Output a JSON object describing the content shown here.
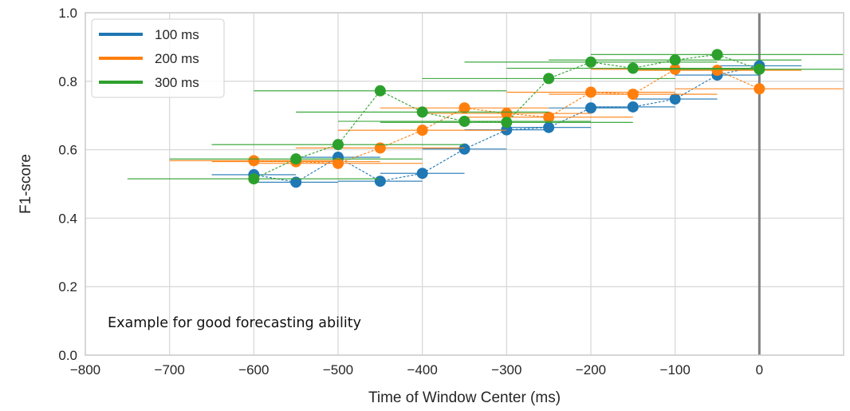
{
  "chart_data": {
    "type": "scatter",
    "title": "",
    "xlabel": "Time of Window Center (ms)",
    "ylabel": "F1-score",
    "xlim": [
      -800,
      100
    ],
    "ylim": [
      0.0,
      1.0
    ],
    "xticks": [
      -800,
      -700,
      -600,
      -500,
      -400,
      -300,
      -200,
      -100,
      0
    ],
    "xtick_labels": [
      "−800",
      "−700",
      "−600",
      "−500",
      "−400",
      "−300",
      "−200",
      "−100",
      "0"
    ],
    "yticks": [
      0.0,
      0.2,
      0.4,
      0.6,
      0.8,
      1.0
    ],
    "ytick_labels": [
      "0.0",
      "0.2",
      "0.4",
      "0.6",
      "0.8",
      "1.0"
    ],
    "grid": true,
    "legend_position": "top-left",
    "reference_line_x": 0,
    "annotation": "Example for good forecasting ability",
    "series": [
      {
        "name": "100 ms",
        "color": "#1f77b4",
        "x": [
          -600,
          -550,
          -500,
          -450,
          -400,
          -350,
          -300,
          -250,
          -200,
          -150,
          -100,
          -50,
          0
        ],
        "y": [
          0.527,
          0.505,
          0.578,
          0.508,
          0.531,
          0.602,
          0.658,
          0.665,
          0.722,
          0.725,
          0.748,
          0.818,
          0.845
        ],
        "x_err_halfwidth": 50
      },
      {
        "name": "200 ms",
        "color": "#ff7f0e",
        "x": [
          -600,
          -550,
          -500,
          -450,
          -400,
          -350,
          -300,
          -250,
          -200,
          -150,
          -100,
          -50,
          0
        ],
        "y": [
          0.568,
          0.565,
          0.56,
          0.605,
          0.657,
          0.722,
          0.706,
          0.695,
          0.768,
          0.762,
          0.835,
          0.832,
          0.778
        ],
        "x_err_halfwidth": 100
      },
      {
        "name": "300 ms",
        "color": "#2ca02c",
        "x": [
          -600,
          -550,
          -500,
          -450,
          -400,
          -350,
          -300,
          -250,
          -200,
          -150,
          -100,
          -50,
          0
        ],
        "y": [
          0.515,
          0.573,
          0.615,
          0.772,
          0.71,
          0.683,
          0.68,
          0.808,
          0.856,
          0.838,
          0.862,
          0.878,
          0.835
        ],
        "x_err_halfwidth": 150
      }
    ]
  }
}
